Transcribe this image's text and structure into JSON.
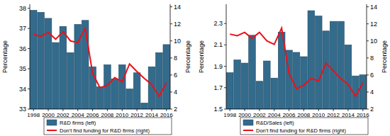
{
  "chart_data": [
    {
      "type": "bar",
      "categories": [
        "1998",
        null,
        "2000",
        null,
        "2002",
        null,
        "2004",
        null,
        "2006",
        null,
        "2008",
        null,
        "2010",
        null,
        "2012",
        null,
        "2014",
        null,
        "2016"
      ],
      "series": [
        {
          "name": "R&D firms (left)",
          "type": "bar",
          "color": "#336b8c",
          "values": [
            37.9,
            37.8,
            37.5,
            36.3,
            37.1,
            35.8,
            37.2,
            37.4,
            35.1,
            34.1,
            35.2,
            34.5,
            35.2,
            34.0,
            34.8,
            33.3,
            35.1,
            35.8,
            36.2
          ]
        },
        {
          "name": "Don't find funding for R&D firms (right)",
          "type": "line",
          "axis": "y2",
          "color": "#e8121b",
          "values": [
            10.8,
            10.5,
            11.0,
            10.2,
            11.1,
            10.0,
            9.8,
            11.5,
            6.2,
            4.5,
            4.8,
            5.7,
            5.2,
            7.3,
            6.4,
            5.6,
            4.9,
            3.5,
            5.1
          ]
        }
      ],
      "y_label": "Percentage",
      "y2_label": "Percentage",
      "ylim": [
        33,
        38.2
      ],
      "yticks": [
        33,
        34,
        35,
        36,
        37,
        38
      ],
      "y2lim": [
        2,
        14.3
      ],
      "y2ticks": [
        2,
        4,
        6,
        8,
        10,
        12,
        14
      ],
      "legend": "bottom",
      "grid": false
    },
    {
      "type": "bar",
      "categories": [
        "1998",
        null,
        "2000",
        null,
        "2002",
        null,
        "2004",
        null,
        "2006",
        null,
        "2008",
        null,
        "2010",
        null,
        "2012",
        null,
        "2014",
        null,
        "2016"
      ],
      "series": [
        {
          "name": "R&D/Sales (left)",
          "type": "bar",
          "color": "#336b8c",
          "values": [
            1.84,
            1.96,
            1.93,
            2.19,
            1.76,
            1.95,
            1.79,
            2.22,
            2.05,
            2.03,
            1.99,
            2.42,
            2.37,
            2.23,
            2.32,
            2.32,
            2.1,
            1.81,
            1.82
          ]
        },
        {
          "name": "Don't find funding for R&D firms (right)",
          "type": "line",
          "axis": "y2",
          "color": "#e8121b",
          "values": [
            10.8,
            10.6,
            11.0,
            10.3,
            11.0,
            10.0,
            9.6,
            11.5,
            6.2,
            4.4,
            4.8,
            5.6,
            5.3,
            7.4,
            6.5,
            5.6,
            4.9,
            3.5,
            5.1
          ]
        }
      ],
      "y_label": "Percentage",
      "y2_label": "Percentage",
      "ylim": [
        1.5,
        2.48
      ],
      "yticks": [
        1.5,
        1.7,
        1.9,
        2.1,
        2.3
      ],
      "y2lim": [
        2,
        14.3
      ],
      "y2ticks": [
        2,
        4,
        6,
        8,
        10,
        12,
        14
      ],
      "legend": "bottom",
      "grid": false
    }
  ]
}
